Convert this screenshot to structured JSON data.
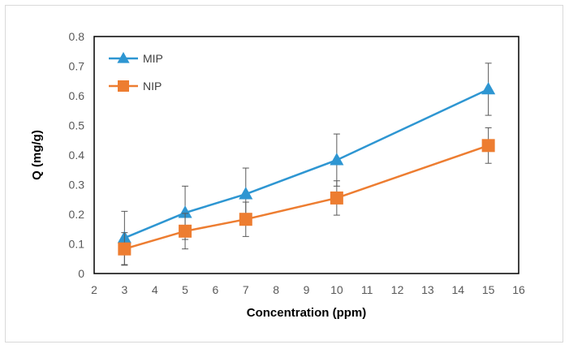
{
  "chart_data": {
    "type": "line",
    "title": "",
    "xlabel": "Concentration (ppm)",
    "ylabel": "Q (mg/g)",
    "xlim": [
      2,
      16
    ],
    "ylim": [
      0,
      0.8
    ],
    "xticks": [
      "2",
      "3",
      "4",
      "5",
      "6",
      "7",
      "8",
      "9",
      "10",
      "11",
      "12",
      "13",
      "14",
      "15",
      "16"
    ],
    "yticks": [
      "0",
      "0.1",
      "0.2",
      "0.3",
      "0.4",
      "0.5",
      "0.6",
      "0.7",
      "0.8"
    ],
    "x": [
      3,
      5,
      7,
      10,
      15
    ],
    "grid": false,
    "legend_position": "top-left",
    "series": [
      {
        "name": "MIP",
        "color": "#2e96d2",
        "marker": "triangle",
        "values": [
          0.12,
          0.205,
          0.268,
          0.383,
          0.622
        ],
        "error": [
          0.09,
          0.09,
          0.088,
          0.088,
          0.088
        ]
      },
      {
        "name": "NIP",
        "color": "#ed7d31",
        "marker": "square",
        "values": [
          0.083,
          0.143,
          0.183,
          0.255,
          0.432
        ],
        "error": [
          0.055,
          0.06,
          0.058,
          0.058,
          0.06
        ]
      }
    ]
  }
}
